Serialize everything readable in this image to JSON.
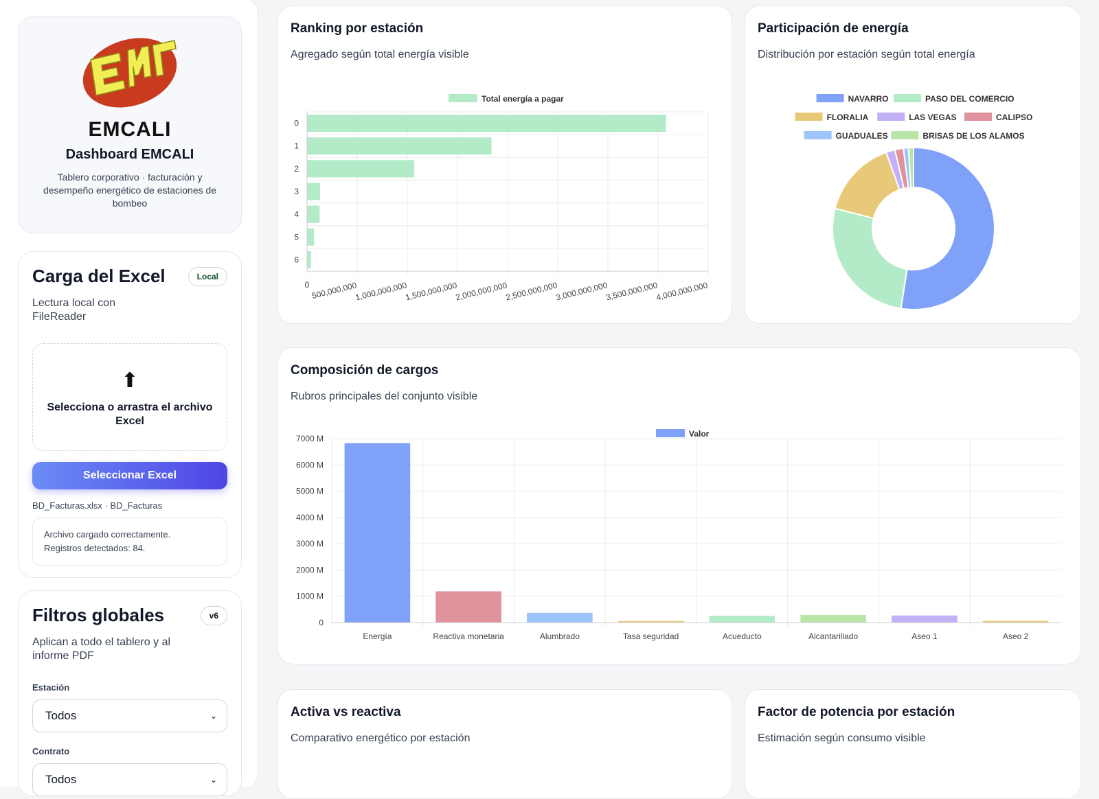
{
  "brand": {
    "logo_text": "EMCALI",
    "title": "Dashboard EMCALI",
    "desc": "Tablero corporativo · facturación y desempeño energético de estaciones de bombeo"
  },
  "upload": {
    "title": "Carga del Excel",
    "badge": "Local",
    "sub": "Lectura local con FileReader",
    "drop_text": "Selecciona o arrastra el archivo Excel",
    "button": "Seleccionar Excel",
    "file": "BD_Facturas.xlsx · BD_Facturas",
    "status_line1": "Archivo cargado correctamente.",
    "status_line2": "Registros detectados: 84."
  },
  "filters": {
    "title": "Filtros globales",
    "badge": "v6",
    "sub": "Aplican a todo el tablero y al informe PDF",
    "station_label": "Estación",
    "station_value": "Todos",
    "contract_label": "Contrato",
    "contract_value": "Todos"
  },
  "ranking": {
    "title": "Ranking por estación",
    "sub": "Agregado según total energía visible"
  },
  "share": {
    "title": "Participación de energía",
    "sub": "Distribución por estación según total energía"
  },
  "composition": {
    "title": "Composición de cargos",
    "sub": "Rubros principales del conjunto visible"
  },
  "active": {
    "title": "Activa vs reactiva",
    "sub": "Comparativo energético por estación"
  },
  "pf": {
    "title": "Factor de potencia por estación",
    "sub": "Estimación según consumo visible"
  },
  "colors": {
    "green": "#b3ebc8",
    "blue": "#7fa1f7",
    "red": "#e0939c",
    "accent": "#4f46e5"
  },
  "chart_data": [
    {
      "type": "bar",
      "orientation": "horizontal",
      "categories": [
        "0",
        "1",
        "2",
        "3",
        "4",
        "5",
        "6"
      ],
      "series": [
        {
          "name": "Total energía a pagar",
          "values": [
            3580000000,
            1840000000,
            1070000000,
            130000000,
            125000000,
            70000000,
            40000000
          ]
        }
      ],
      "xticks": [
        "0",
        "500,000,000",
        "1,000,000,000",
        "1,500,000,000",
        "2,000,000,000",
        "2,500,000,000",
        "3,000,000,000",
        "3,500,000,000",
        "4,000,000,000"
      ],
      "xlim": [
        0,
        4000000000
      ],
      "grid": true,
      "legend": "top"
    },
    {
      "type": "pie",
      "donut": true,
      "labels": [
        "NAVARRO",
        "PASO DEL COMERCIO",
        "FLORALIA",
        "LAS VEGAS",
        "CALIPSO",
        "GUADUALES",
        "BRISAS DE LOS ALAMOS"
      ],
      "values": [
        52.5,
        26.5,
        15.5,
        1.8,
        1.7,
        1.0,
        1.0
      ],
      "colors": [
        "#7fa1f7",
        "#b3ebc8",
        "#e8c97a",
        "#c3b1f7",
        "#e0939c",
        "#9cc5fa",
        "#b9e6a8"
      ],
      "legend": "top"
    },
    {
      "type": "bar",
      "categories": [
        "Energía",
        "Reactiva monetaria",
        "Alumbrado",
        "Tasa seguridad",
        "Acueducto",
        "Alcantarillado",
        "Aseo 1",
        "Aseo 2"
      ],
      "series": [
        {
          "name": "Valor",
          "values": [
            6830,
            1190,
            370,
            60,
            260,
            290,
            270,
            70
          ]
        }
      ],
      "bar_colors": [
        "#7fa1f7",
        "#e0939c",
        "#9cc5fa",
        "#e8c97a",
        "#b3ebc8",
        "#b9e6a8",
        "#c3b1f7",
        "#e8c97a"
      ],
      "ylim": [
        0,
        7000
      ],
      "yticks": [
        "0",
        "1000 M",
        "2000 M",
        "3000 M",
        "4000 M",
        "5000 M",
        "6000 M",
        "7000 M"
      ],
      "grid": true,
      "legend": "top"
    }
  ]
}
